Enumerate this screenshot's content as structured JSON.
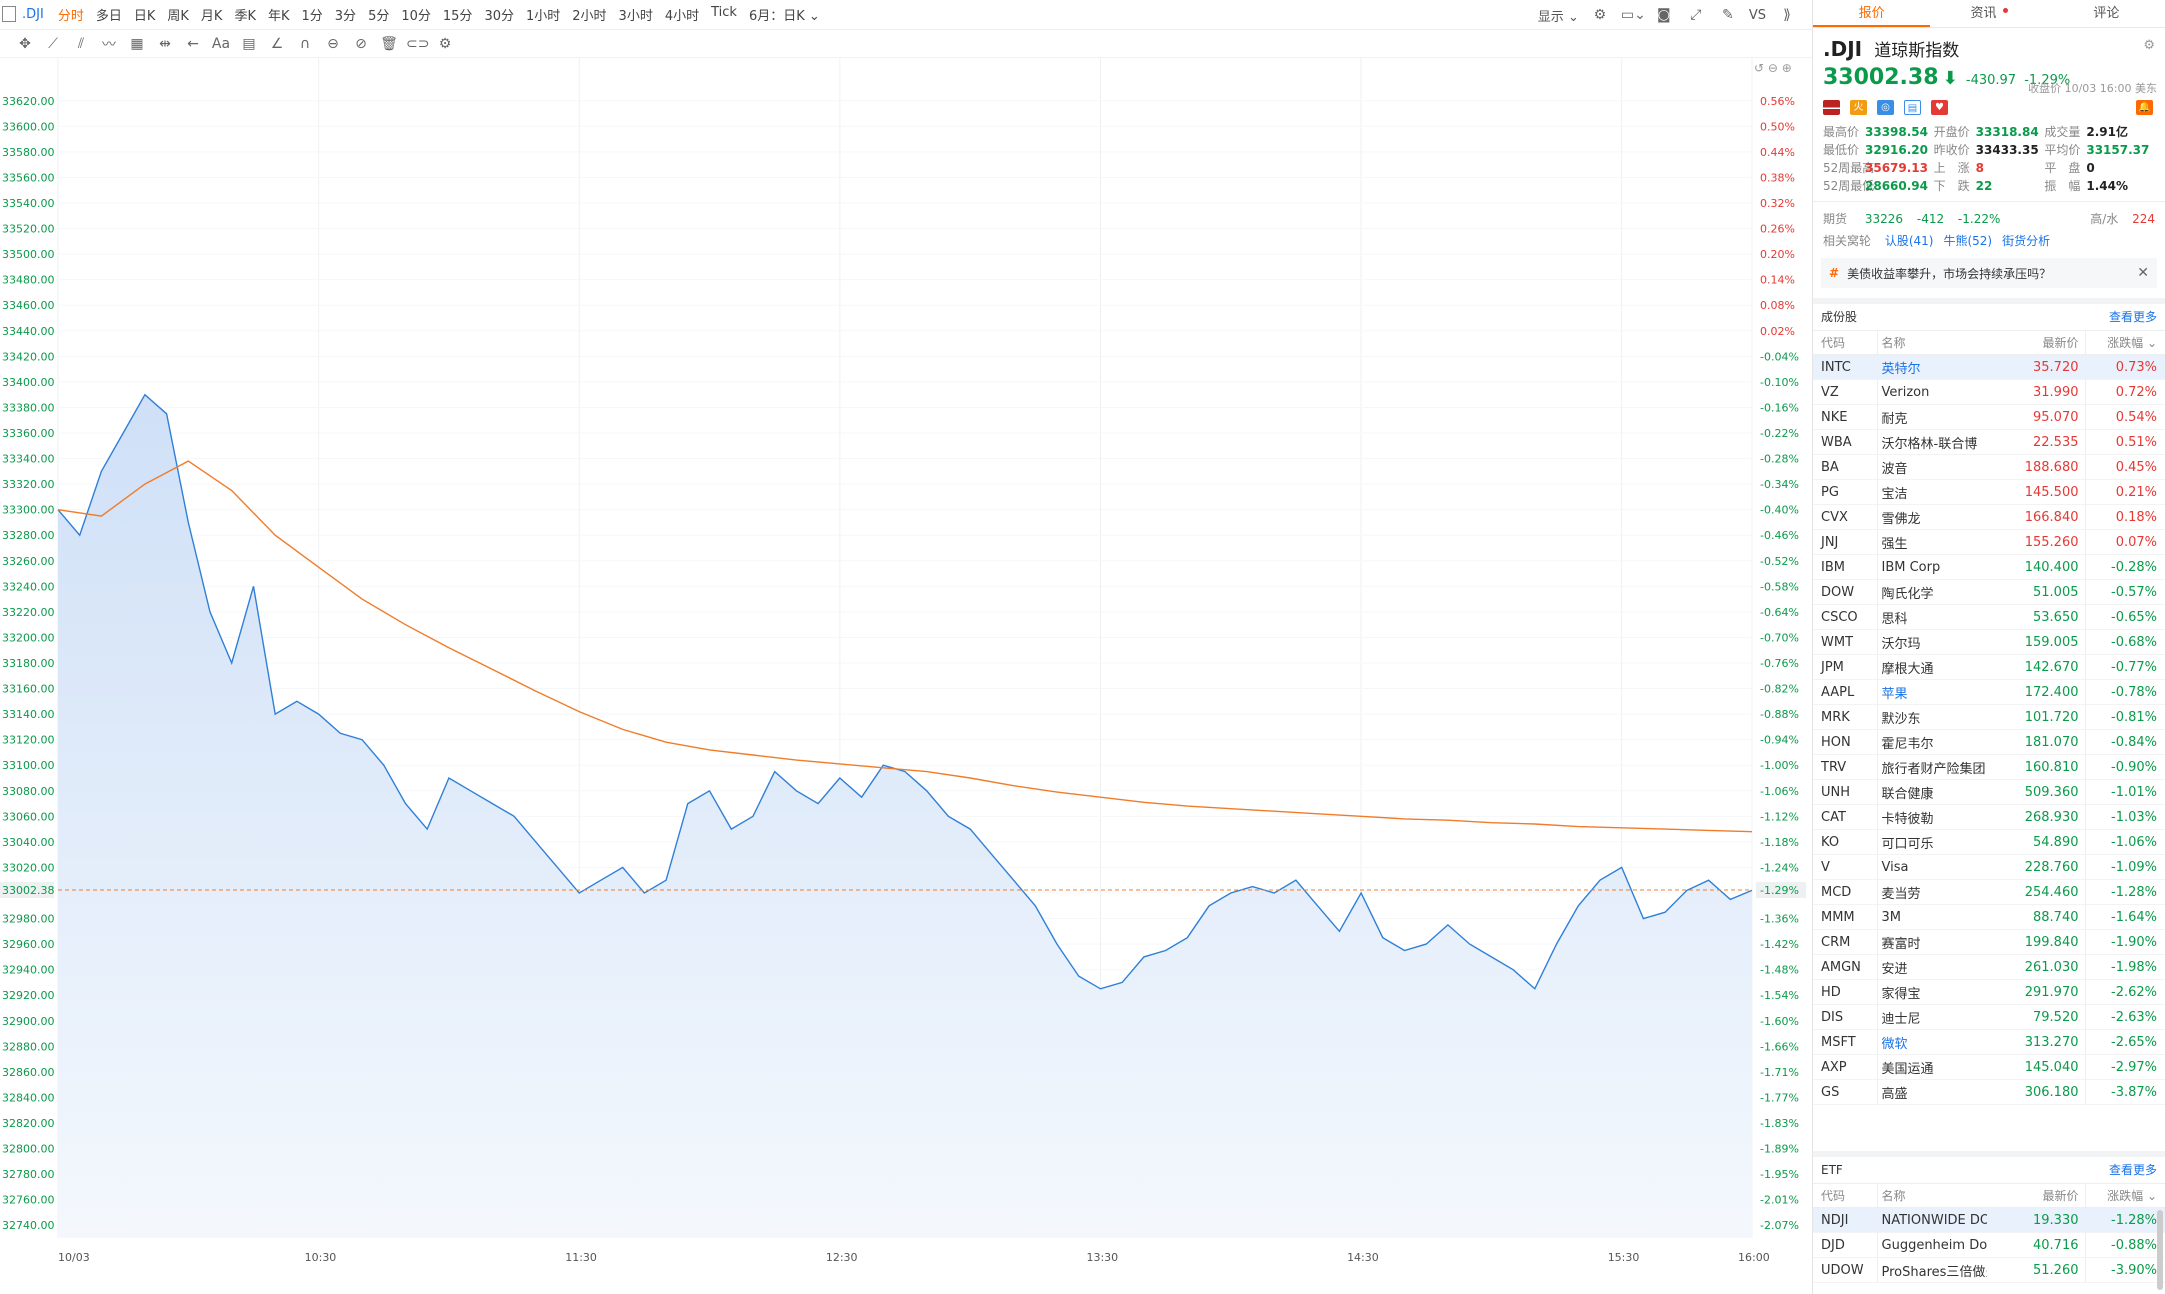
{
  "toolbar": {
    "symbol": ".DJI",
    "timeframes": [
      "分时",
      "多日",
      "日K",
      "周K",
      "月K",
      "季K",
      "年K",
      "1分",
      "3分",
      "5分",
      "10分",
      "15分",
      "30分",
      "1小时",
      "2小时",
      "3小时",
      "4小时",
      "Tick"
    ],
    "active_timeframe": "分时",
    "adjust_label": "6月：日K",
    "display_label": "显示",
    "vs_label": "VS"
  },
  "chart_data": {
    "type": "line",
    "title": "",
    "xlabel": "",
    "ylabel": "",
    "x_ticks": [
      "10/03",
      "10:30",
      "11:30",
      "12:30",
      "13:30",
      "14:30",
      "15:30",
      "16:00"
    ],
    "ylim": [
      32730,
      33630
    ],
    "y_ticks_left": [
      "33620.00",
      "33600.00",
      "33580.00",
      "33560.00",
      "33540.00",
      "33520.00",
      "33500.00",
      "33480.00",
      "33460.00",
      "33440.00",
      "33420.00",
      "33400.00",
      "33380.00",
      "33360.00",
      "33340.00",
      "33320.00",
      "33300.00",
      "33280.00",
      "33260.00",
      "33240.00",
      "33220.00",
      "33200.00",
      "33180.00",
      "33160.00",
      "33140.00",
      "33120.00",
      "33100.00",
      "33080.00",
      "33060.00",
      "33040.00",
      "33020.00",
      "33000.00",
      "32980.00",
      "32960.00",
      "32940.00",
      "32920.00",
      "32900.00",
      "32880.00",
      "32860.00",
      "32840.00",
      "32820.00",
      "32800.00",
      "32780.00",
      "32760.00",
      "32740.00"
    ],
    "y_ticks_right": [
      "0.56%",
      "0.50%",
      "0.44%",
      "0.38%",
      "0.32%",
      "0.26%",
      "0.20%",
      "0.14%",
      "0.08%",
      "0.02%",
      "-0.04%",
      "-0.10%",
      "-0.16%",
      "-0.22%",
      "-0.28%",
      "-0.34%",
      "-0.40%",
      "-0.46%",
      "-0.52%",
      "-0.58%",
      "-0.64%",
      "-0.70%",
      "-0.76%",
      "-0.82%",
      "-0.88%",
      "-0.94%",
      "-1.00%",
      "-1.06%",
      "-1.12%",
      "-1.18%",
      "-1.24%",
      "-1.30%",
      "-1.36%",
      "-1.42%",
      "-1.48%",
      "-1.54%",
      "-1.60%",
      "-1.66%",
      "-1.71%",
      "-1.77%",
      "-1.83%",
      "-1.89%",
      "-1.95%",
      "-2.01%",
      "-2.07%"
    ],
    "current_price_label": "33002.38",
    "current_pct_label": "-1.29%",
    "current_value": 33002.38,
    "series": [
      {
        "name": "",
        "color": "#2f7fd8",
        "x_minutes": [
          0,
          5,
          10,
          15,
          20,
          25,
          30,
          35,
          40,
          45,
          50,
          55,
          60,
          65,
          70,
          75,
          80,
          85,
          90,
          95,
          100,
          105,
          110,
          115,
          120,
          125,
          130,
          135,
          140,
          145,
          150,
          155,
          160,
          165,
          170,
          175,
          180,
          185,
          190,
          195,
          200,
          205,
          210,
          215,
          220,
          225,
          230,
          235,
          240,
          245,
          250,
          255,
          260,
          265,
          270,
          275,
          280,
          285,
          290,
          295,
          300,
          305,
          310,
          315,
          320,
          325,
          330,
          335,
          340,
          345,
          350,
          355,
          360,
          365,
          370,
          375,
          380,
          385,
          390
        ],
        "values": [
          33300,
          33280,
          33330,
          33360,
          33390,
          33375,
          33290,
          33220,
          33180,
          33240,
          33140,
          33150,
          33140,
          33125,
          33120,
          33100,
          33070,
          33050,
          33090,
          33080,
          33070,
          33060,
          33040,
          33020,
          33000,
          33010,
          33020,
          33000,
          33010,
          33070,
          33080,
          33050,
          33060,
          33095,
          33080,
          33070,
          33090,
          33075,
          33100,
          33095,
          33080,
          33060,
          33050,
          33030,
          33010,
          32990,
          32960,
          32935,
          32925,
          32930,
          32950,
          32955,
          32965,
          32990,
          33000,
          33005,
          33000,
          33010,
          32990,
          32970,
          33000,
          32965,
          32955,
          32960,
          32975,
          32960,
          32950,
          32940,
          32925,
          32960,
          32990,
          33010,
          33020,
          32980,
          32985,
          33002,
          33010,
          32995,
          33002
        ]
      },
      {
        "name": "",
        "color": "#f07c2a",
        "x_minutes": [
          0,
          10,
          20,
          30,
          40,
          50,
          60,
          70,
          80,
          90,
          100,
          110,
          120,
          130,
          140,
          150,
          160,
          170,
          180,
          190,
          200,
          210,
          220,
          230,
          240,
          250,
          260,
          270,
          280,
          290,
          300,
          310,
          320,
          330,
          340,
          350,
          360,
          370,
          380,
          390
        ],
        "values": [
          33300,
          33295,
          33320,
          33338,
          33315,
          33280,
          33255,
          33230,
          33210,
          33192,
          33175,
          33158,
          33142,
          33128,
          33118,
          33112,
          33108,
          33104,
          33101,
          33098,
          33095,
          33090,
          33084,
          33079,
          33075,
          33071,
          33068,
          33066,
          33064,
          33062,
          33060,
          33058,
          33057,
          33055,
          33054,
          33052,
          33051,
          33050,
          33049,
          33048
        ]
      }
    ],
    "grid": true,
    "legend": "none"
  },
  "quote": {
    "symbol": ".DJI",
    "name": "道琼斯指数",
    "price": "33002.38",
    "change": "-430.97",
    "change_pct": "-1.29%",
    "close_time": "收盘价 10/03 16:00 美东",
    "stats": [
      [
        {
          "label": "最高价",
          "value": "33398.54",
          "cls": "green"
        },
        {
          "label": "开盘价",
          "value": "33318.84",
          "cls": "green"
        },
        {
          "label": "成交量",
          "value": "2.91亿",
          "cls": "dark"
        }
      ],
      [
        {
          "label": "最低价",
          "value": "32916.20",
          "cls": "green"
        },
        {
          "label": "昨收价",
          "value": "33433.35",
          "cls": "dark"
        },
        {
          "label": "平均价",
          "value": "33157.37",
          "cls": "green"
        }
      ],
      [
        {
          "label": "52周最高",
          "value": "35679.13",
          "cls": "red"
        },
        {
          "label": "上　涨",
          "value": "8",
          "cls": "red"
        },
        {
          "label": "平　盘",
          "value": "0",
          "cls": "dark"
        }
      ],
      [
        {
          "label": "52周最低",
          "value": "28660.94",
          "cls": "green"
        },
        {
          "label": "下　跌",
          "value": "22",
          "cls": "green"
        },
        {
          "label": "振　幅",
          "value": "1.44%",
          "cls": "dark"
        }
      ]
    ],
    "futures_label": "期货",
    "futures_value": "33226",
    "futures_change": "-412",
    "futures_pct": "-1.22%",
    "highlow_label": "高/水",
    "highlow_value": "224",
    "related_label": "相关窝轮",
    "related_links": [
      "认股(41)",
      "牛熊(52)",
      "街货分析"
    ],
    "news": "美债收益率攀升，市场会持续承压吗？"
  },
  "constituents": {
    "title": "成份股",
    "more": "查看更多",
    "headers": [
      "代码",
      "名称",
      "最新价",
      "涨跌幅"
    ],
    "rows": [
      {
        "code": "INTC",
        "name": "英特尔",
        "price": "35.720",
        "pct": "0.73%",
        "up": true,
        "link": true,
        "sel": true
      },
      {
        "code": "VZ",
        "name": "Verizon",
        "price": "31.990",
        "pct": "0.72%",
        "up": true
      },
      {
        "code": "NKE",
        "name": "耐克",
        "price": "95.070",
        "pct": "0.54%",
        "up": true
      },
      {
        "code": "WBA",
        "name": "沃尔格林-联合博",
        "price": "22.535",
        "pct": "0.51%",
        "up": true
      },
      {
        "code": "BA",
        "name": "波音",
        "price": "188.680",
        "pct": "0.45%",
        "up": true
      },
      {
        "code": "PG",
        "name": "宝洁",
        "price": "145.500",
        "pct": "0.21%",
        "up": true
      },
      {
        "code": "CVX",
        "name": "雪佛龙",
        "price": "166.840",
        "pct": "0.18%",
        "up": true
      },
      {
        "code": "JNJ",
        "name": "强生",
        "price": "155.260",
        "pct": "0.07%",
        "up": true
      },
      {
        "code": "IBM",
        "name": "IBM Corp",
        "price": "140.400",
        "pct": "-0.28%",
        "up": false
      },
      {
        "code": "DOW",
        "name": "陶氏化学",
        "price": "51.005",
        "pct": "-0.57%",
        "up": false
      },
      {
        "code": "CSCO",
        "name": "思科",
        "price": "53.650",
        "pct": "-0.65%",
        "up": false
      },
      {
        "code": "WMT",
        "name": "沃尔玛",
        "price": "159.005",
        "pct": "-0.68%",
        "up": false
      },
      {
        "code": "JPM",
        "name": "摩根大通",
        "price": "142.670",
        "pct": "-0.77%",
        "up": false
      },
      {
        "code": "AAPL",
        "name": "苹果",
        "price": "172.400",
        "pct": "-0.78%",
        "up": false,
        "link": true
      },
      {
        "code": "MRK",
        "name": "默沙东",
        "price": "101.720",
        "pct": "-0.81%",
        "up": false
      },
      {
        "code": "HON",
        "name": "霍尼韦尔",
        "price": "181.070",
        "pct": "-0.84%",
        "up": false
      },
      {
        "code": "TRV",
        "name": "旅行者财产险集团",
        "price": "160.810",
        "pct": "-0.90%",
        "up": false
      },
      {
        "code": "UNH",
        "name": "联合健康",
        "price": "509.360",
        "pct": "-1.01%",
        "up": false
      },
      {
        "code": "CAT",
        "name": "卡特彼勒",
        "price": "268.930",
        "pct": "-1.03%",
        "up": false
      },
      {
        "code": "KO",
        "name": "可口可乐",
        "price": "54.890",
        "pct": "-1.06%",
        "up": false
      },
      {
        "code": "V",
        "name": "Visa",
        "price": "228.760",
        "pct": "-1.09%",
        "up": false
      },
      {
        "code": "MCD",
        "name": "麦当劳",
        "price": "254.460",
        "pct": "-1.28%",
        "up": false
      },
      {
        "code": "MMM",
        "name": "3M",
        "price": "88.740",
        "pct": "-1.64%",
        "up": false
      },
      {
        "code": "CRM",
        "name": "赛富时",
        "price": "199.840",
        "pct": "-1.90%",
        "up": false
      },
      {
        "code": "AMGN",
        "name": "安进",
        "price": "261.030",
        "pct": "-1.98%",
        "up": false
      },
      {
        "code": "HD",
        "name": "家得宝",
        "price": "291.970",
        "pct": "-2.62%",
        "up": false
      },
      {
        "code": "DIS",
        "name": "迪士尼",
        "price": "79.520",
        "pct": "-2.63%",
        "up": false
      },
      {
        "code": "MSFT",
        "name": "微软",
        "price": "313.270",
        "pct": "-2.65%",
        "up": false,
        "link": true
      },
      {
        "code": "AXP",
        "name": "美国运通",
        "price": "145.040",
        "pct": "-2.97%",
        "up": false
      },
      {
        "code": "GS",
        "name": "高盛",
        "price": "306.180",
        "pct": "-3.87%",
        "up": false
      }
    ]
  },
  "etf": {
    "title": "ETF",
    "more": "查看更多",
    "headers": [
      "代码",
      "名称",
      "最新价",
      "涨跌幅"
    ],
    "rows": [
      {
        "code": "NDJI",
        "name": "NATIONWIDE DOW",
        "price": "19.330",
        "pct": "-1.28%",
        "up": false,
        "sel": true
      },
      {
        "code": "DJD",
        "name": "Guggenheim Dow",
        "price": "40.716",
        "pct": "-0.88%",
        "up": false
      },
      {
        "code": "UDOW",
        "name": "ProShares三倍做多",
        "price": "51.260",
        "pct": "-3.90%",
        "up": false
      }
    ]
  },
  "tabs": [
    {
      "label": "报价",
      "active": true,
      "dot": false
    },
    {
      "label": "资讯",
      "active": false,
      "dot": true
    },
    {
      "label": "评论",
      "active": false,
      "dot": false
    }
  ]
}
